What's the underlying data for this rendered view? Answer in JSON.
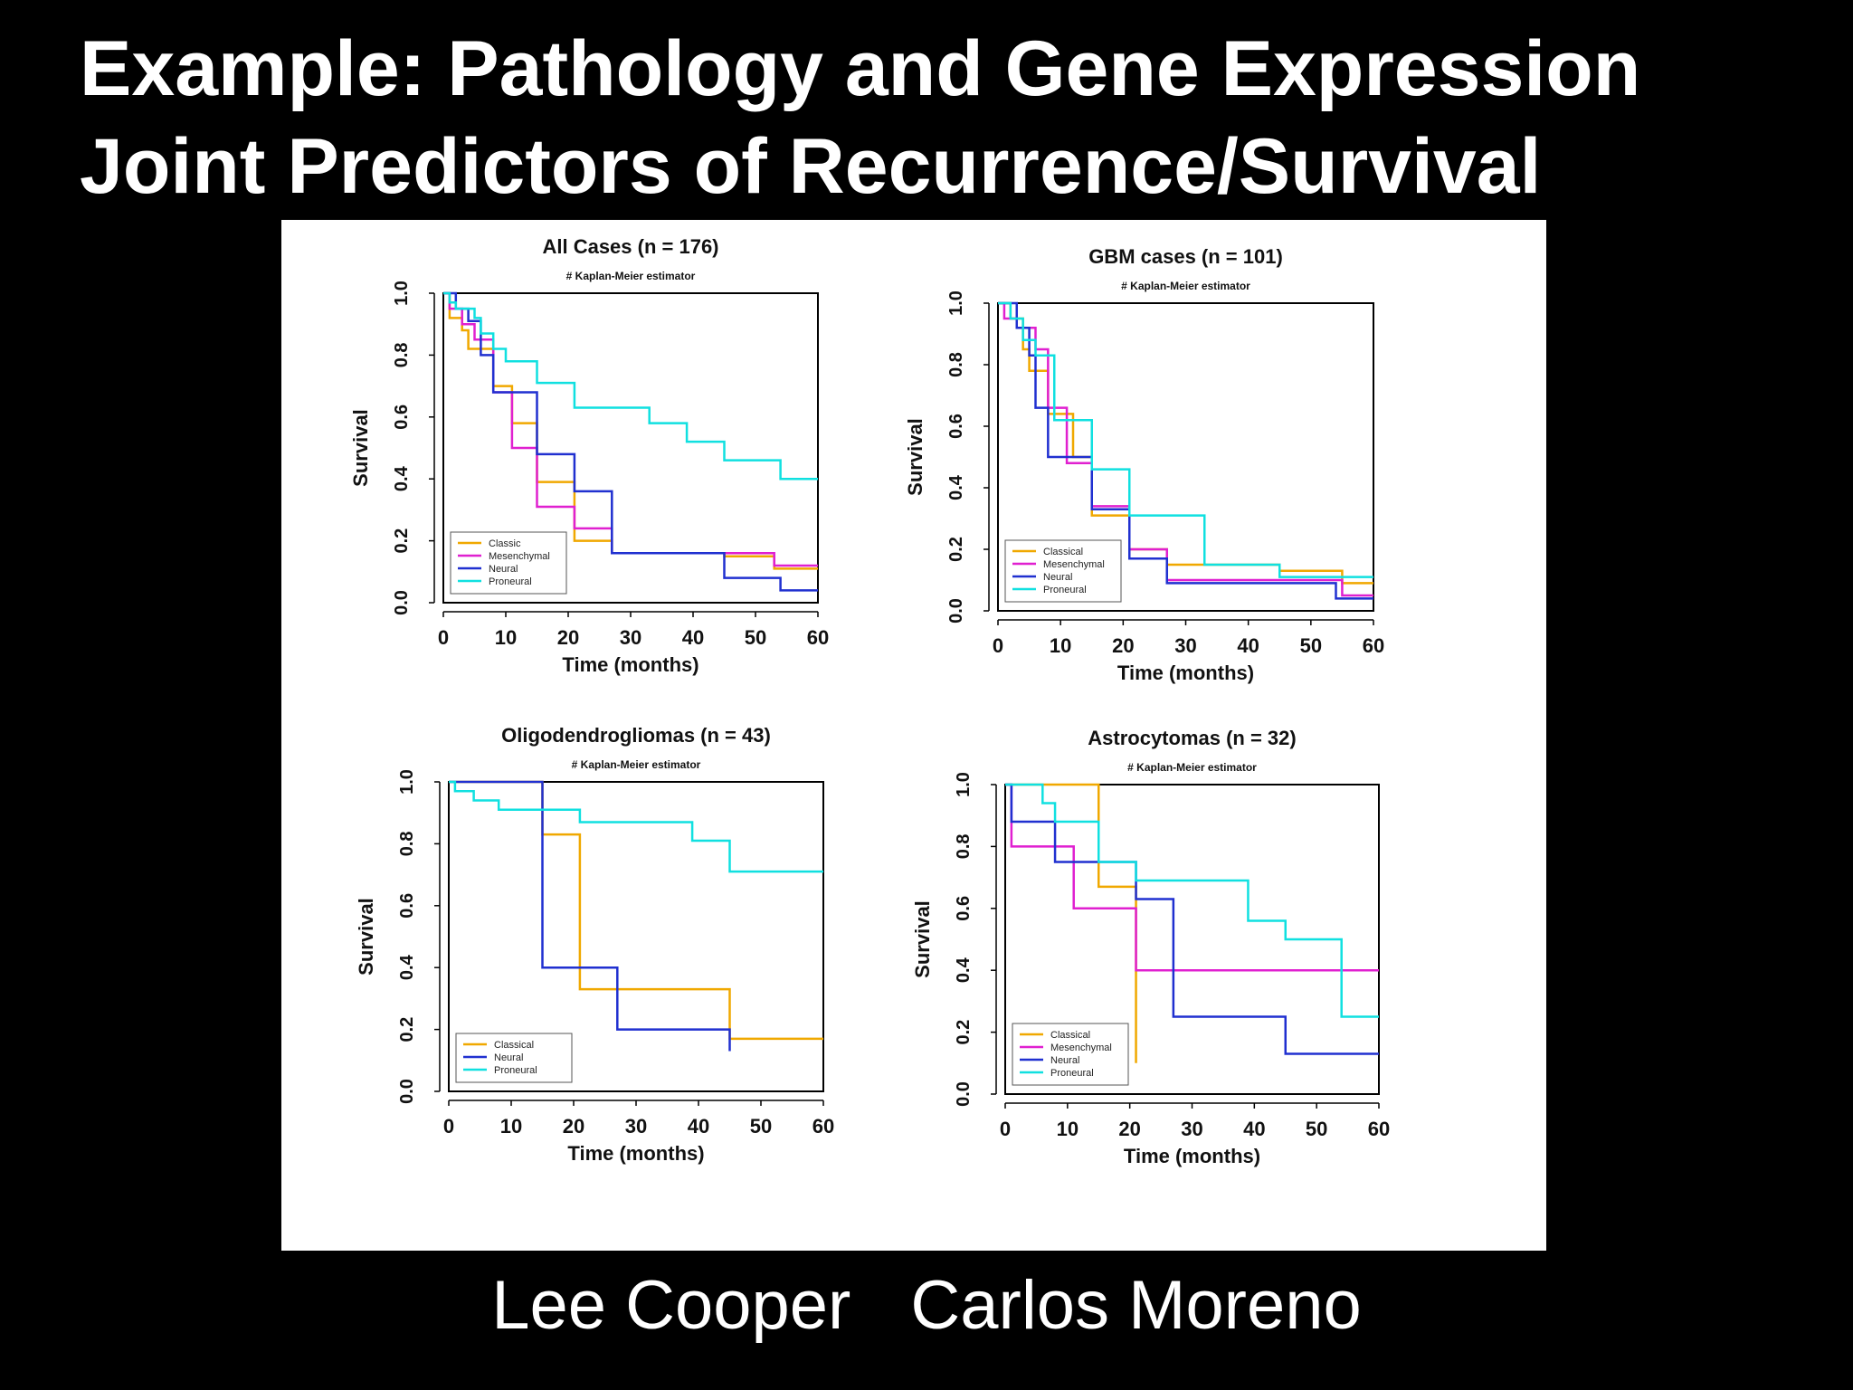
{
  "slide": {
    "title_line1": "Example: Pathology and Gene Expression",
    "title_line2": "Joint Predictors of Recurrence/Survival",
    "author1": "Lee Cooper",
    "author2": "Carlos Moreno"
  },
  "colors": {
    "Classic": "#f0a800",
    "Classical": "#f0a800",
    "Mesenchymal": "#e020d0",
    "Neural": "#2030d0",
    "Proneural": "#10e0e0"
  },
  "chart_data": [
    {
      "type": "line",
      "step": true,
      "title": "All Cases (n = 176)",
      "subtitle": "# Kaplan-Meier estimator",
      "xlabel": "Time (months)",
      "ylabel": "Survival",
      "xlim": [
        0,
        60
      ],
      "ylim": [
        0,
        1
      ],
      "xticks": [
        "0",
        "10",
        "20",
        "30",
        "40",
        "50",
        "60"
      ],
      "yticks": [
        "0.0",
        "0.2",
        "0.4",
        "0.6",
        "0.8",
        "1.0"
      ],
      "legend_position": "bottom-left",
      "series": [
        {
          "name": "Classic",
          "x": [
            0,
            1,
            3,
            4,
            8,
            11,
            15,
            21,
            27,
            45,
            53,
            60
          ],
          "y": [
            1.0,
            0.92,
            0.88,
            0.82,
            0.7,
            0.58,
            0.39,
            0.2,
            0.16,
            0.15,
            0.11,
            0.11
          ]
        },
        {
          "name": "Mesenchymal",
          "x": [
            0,
            1,
            3,
            5,
            8,
            11,
            15,
            21,
            27,
            45,
            53,
            60
          ],
          "y": [
            1.0,
            0.95,
            0.9,
            0.85,
            0.68,
            0.5,
            0.31,
            0.24,
            0.16,
            0.16,
            0.12,
            0.12
          ]
        },
        {
          "name": "Neural",
          "x": [
            0,
            2,
            4,
            6,
            8,
            15,
            21,
            27,
            45,
            54,
            60
          ],
          "y": [
            1.0,
            0.95,
            0.91,
            0.8,
            0.68,
            0.48,
            0.36,
            0.16,
            0.08,
            0.04,
            0.04
          ]
        },
        {
          "name": "Proneural",
          "x": [
            0,
            1,
            2,
            5,
            6,
            8,
            10,
            15,
            21,
            33,
            39,
            45,
            54,
            60
          ],
          "y": [
            1.0,
            0.97,
            0.95,
            0.92,
            0.87,
            0.82,
            0.78,
            0.71,
            0.63,
            0.58,
            0.52,
            0.46,
            0.4,
            0.4
          ]
        }
      ]
    },
    {
      "type": "line",
      "step": true,
      "title": "GBM cases (n = 101)",
      "subtitle": "# Kaplan-Meier estimator",
      "xlabel": "Time (months)",
      "ylabel": "Survival",
      "xlim": [
        0,
        60
      ],
      "ylim": [
        0,
        1
      ],
      "xticks": [
        "0",
        "10",
        "20",
        "30",
        "40",
        "50",
        "60"
      ],
      "yticks": [
        "0.0",
        "0.2",
        "0.4",
        "0.6",
        "0.8",
        "1.0"
      ],
      "legend_position": "bottom-left",
      "series": [
        {
          "name": "Classical",
          "x": [
            0,
            2,
            4,
            5,
            8,
            12,
            15,
            21,
            27,
            45,
            55,
            60
          ],
          "y": [
            1.0,
            0.95,
            0.85,
            0.78,
            0.64,
            0.5,
            0.31,
            0.2,
            0.15,
            0.13,
            0.09,
            0.09
          ]
        },
        {
          "name": "Mesenchymal",
          "x": [
            0,
            1,
            3,
            6,
            8,
            11,
            15,
            21,
            27,
            55,
            60
          ],
          "y": [
            1.0,
            0.95,
            0.92,
            0.85,
            0.66,
            0.48,
            0.34,
            0.2,
            0.1,
            0.05,
            0.05
          ]
        },
        {
          "name": "Neural",
          "x": [
            0,
            3,
            5,
            6,
            8,
            15,
            21,
            27,
            54,
            60
          ],
          "y": [
            1.0,
            0.92,
            0.83,
            0.66,
            0.5,
            0.33,
            0.17,
            0.09,
            0.04,
            0.04
          ]
        },
        {
          "name": "Proneural",
          "x": [
            0,
            2,
            4,
            6,
            9,
            15,
            21,
            33,
            45,
            60
          ],
          "y": [
            1.0,
            0.95,
            0.88,
            0.83,
            0.62,
            0.46,
            0.31,
            0.15,
            0.11,
            0.11
          ]
        }
      ]
    },
    {
      "type": "line",
      "step": true,
      "title": "Oligodendrogliomas (n = 43)",
      "subtitle": "# Kaplan-Meier estimator",
      "xlabel": "Time (months)",
      "ylabel": "Survival",
      "xlim": [
        0,
        60
      ],
      "ylim": [
        0,
        1
      ],
      "xticks": [
        "0",
        "10",
        "20",
        "30",
        "40",
        "50",
        "60"
      ],
      "yticks": [
        "0.0",
        "0.2",
        "0.4",
        "0.6",
        "0.8",
        "1.0"
      ],
      "legend_position": "bottom-left",
      "series": [
        {
          "name": "Classical",
          "x": [
            0,
            15,
            21,
            45,
            60
          ],
          "y": [
            1.0,
            0.83,
            0.33,
            0.17,
            0.17
          ]
        },
        {
          "name": "Neural",
          "x": [
            0,
            15,
            27,
            45
          ],
          "y": [
            1.0,
            0.4,
            0.2,
            0.13
          ]
        },
        {
          "name": "Proneural",
          "x": [
            0,
            1,
            4,
            8,
            21,
            39,
            45,
            60
          ],
          "y": [
            1.0,
            0.97,
            0.94,
            0.91,
            0.87,
            0.81,
            0.71,
            0.71
          ]
        }
      ]
    },
    {
      "type": "line",
      "step": true,
      "title": "Astrocytomas (n = 32)",
      "subtitle": "# Kaplan-Meier estimator",
      "xlabel": "Time (months)",
      "ylabel": "Survival",
      "xlim": [
        0,
        60
      ],
      "ylim": [
        0,
        1
      ],
      "xticks": [
        "0",
        "10",
        "20",
        "30",
        "40",
        "50",
        "60"
      ],
      "yticks": [
        "0.0",
        "0.2",
        "0.4",
        "0.6",
        "0.8",
        "1.0"
      ],
      "legend_position": "bottom-left",
      "series": [
        {
          "name": "Classical",
          "x": [
            0,
            15,
            21
          ],
          "y": [
            1.0,
            0.67,
            0.1
          ]
        },
        {
          "name": "Mesenchymal",
          "x": [
            0,
            1,
            11,
            21,
            60
          ],
          "y": [
            1.0,
            0.8,
            0.6,
            0.4,
            0.4
          ]
        },
        {
          "name": "Neural",
          "x": [
            0,
            1,
            8,
            21,
            27,
            45,
            60
          ],
          "y": [
            1.0,
            0.88,
            0.75,
            0.63,
            0.25,
            0.13,
            0.13
          ]
        },
        {
          "name": "Proneural",
          "x": [
            0,
            6,
            8,
            15,
            21,
            39,
            45,
            54,
            60
          ],
          "y": [
            1.0,
            0.94,
            0.88,
            0.75,
            0.69,
            0.56,
            0.5,
            0.25,
            0.25
          ]
        }
      ]
    }
  ]
}
